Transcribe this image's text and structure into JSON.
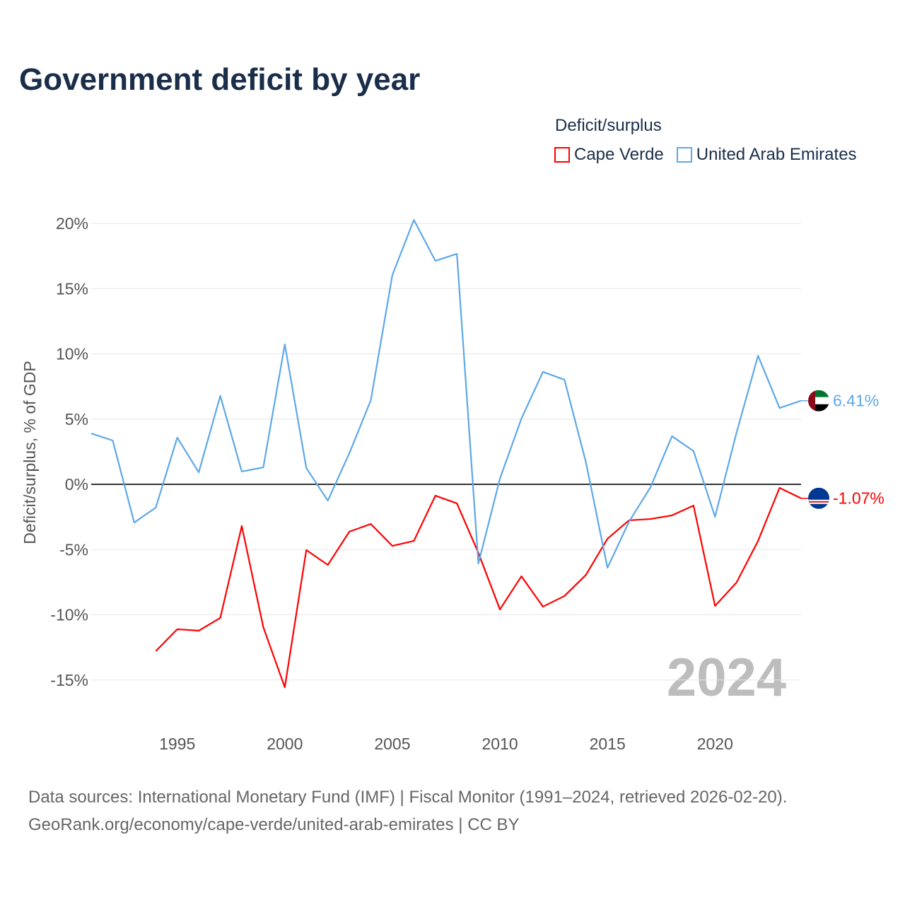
{
  "title": "Government deficit by year",
  "legend": {
    "title": "Deficit/surplus",
    "items": [
      {
        "label": "Cape Verde",
        "color": "#ff0000"
      },
      {
        "label": "United Arab Emirates",
        "color": "#5ea8e8"
      }
    ]
  },
  "watermark_year": "2024",
  "footer": {
    "line1": "Data sources: International Monetary Fund (IMF) | Fiscal Monitor (1991–2024, retrieved 2026-02-20).",
    "line2": "GeoRank.org/economy/cape-verde/united-arab-emirates | CC BY"
  },
  "chart_data": {
    "type": "line",
    "title": "Government deficit by year",
    "xlabel": "",
    "ylabel": "Deficit/surplus, % of GDP",
    "xlim": [
      1991,
      2024
    ],
    "ylim": [
      -17,
      21
    ],
    "xticks": [
      1995,
      2000,
      2005,
      2010,
      2015,
      2020
    ],
    "yticks": [
      -15,
      -10,
      -5,
      0,
      5,
      10,
      15,
      20
    ],
    "ytick_labels": [
      "-15%",
      "-10%",
      "-5%",
      "0%",
      "5%",
      "10%",
      "15%",
      "20%"
    ],
    "grid": true,
    "legend_position": "top-right",
    "series": [
      {
        "name": "Cape Verde",
        "color": "#ff0000",
        "end_label": "-1.07%",
        "x": [
          1994,
          1995,
          1996,
          1997,
          1998,
          1999,
          2000,
          2001,
          2002,
          2003,
          2004,
          2005,
          2006,
          2007,
          2008,
          2009,
          2010,
          2011,
          2012,
          2013,
          2014,
          2015,
          2016,
          2017,
          2018,
          2019,
          2020,
          2021,
          2022,
          2023,
          2024
        ],
        "values": [
          -12.79,
          -11.11,
          -11.22,
          -10.24,
          -3.2,
          -10.95,
          -15.56,
          -5.04,
          -6.18,
          -3.63,
          -3.04,
          -4.72,
          -4.34,
          -0.87,
          -1.46,
          -5.26,
          -9.59,
          -7.05,
          -9.38,
          -8.56,
          -6.94,
          -4.17,
          -2.76,
          -2.66,
          -2.38,
          -1.63,
          -9.32,
          -7.53,
          -4.34,
          -0.27,
          -1.07
        ]
      },
      {
        "name": "United Arab Emirates",
        "color": "#5ea8e8",
        "end_label": "6.41%",
        "x": [
          1991,
          1992,
          1993,
          1994,
          1995,
          1996,
          1997,
          1998,
          1999,
          2000,
          2001,
          2002,
          2003,
          2004,
          2005,
          2006,
          2007,
          2008,
          2009,
          2010,
          2011,
          2012,
          2013,
          2014,
          2015,
          2016,
          2017,
          2018,
          2019,
          2020,
          2021,
          2022,
          2023,
          2024
        ],
        "values": [
          3.9,
          3.36,
          -2.93,
          -1.79,
          3.58,
          0.92,
          6.78,
          0.98,
          1.3,
          10.73,
          1.25,
          -1.25,
          2.38,
          6.45,
          16.04,
          20.27,
          17.13,
          17.67,
          -6.07,
          0.43,
          5.04,
          8.62,
          8.02,
          1.68,
          -6.4,
          -2.87,
          -0.22,
          3.69,
          2.55,
          -2.49,
          3.96,
          9.86,
          5.85,
          6.41
        ]
      }
    ]
  }
}
